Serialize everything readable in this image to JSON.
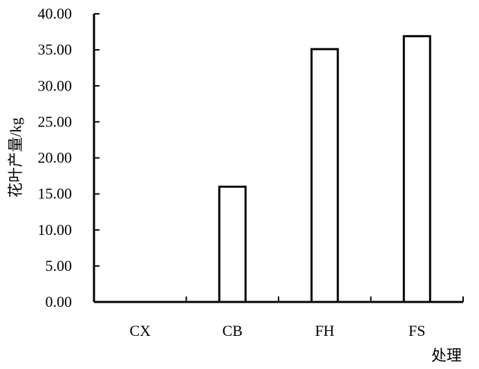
{
  "chart_data": {
    "type": "bar",
    "title": "",
    "xlabel": "处理",
    "ylabel": "花叶产量/kg",
    "categories": [
      "CX",
      "CB",
      "FH",
      "FS"
    ],
    "values": [
      0,
      16.0,
      35.1,
      36.9
    ],
    "ylim": [
      0,
      40
    ],
    "yticks": [
      0,
      5,
      10,
      15,
      20,
      25,
      30,
      35,
      40
    ],
    "ytick_labels": [
      "0.00",
      "5.00",
      "10.00",
      "15.00",
      "20.00",
      "25.00",
      "30.00",
      "35.00",
      "40.00"
    ],
    "grid": false,
    "legend": "none",
    "bar_fill": "#ffffff",
    "bar_stroke": "#000000"
  }
}
